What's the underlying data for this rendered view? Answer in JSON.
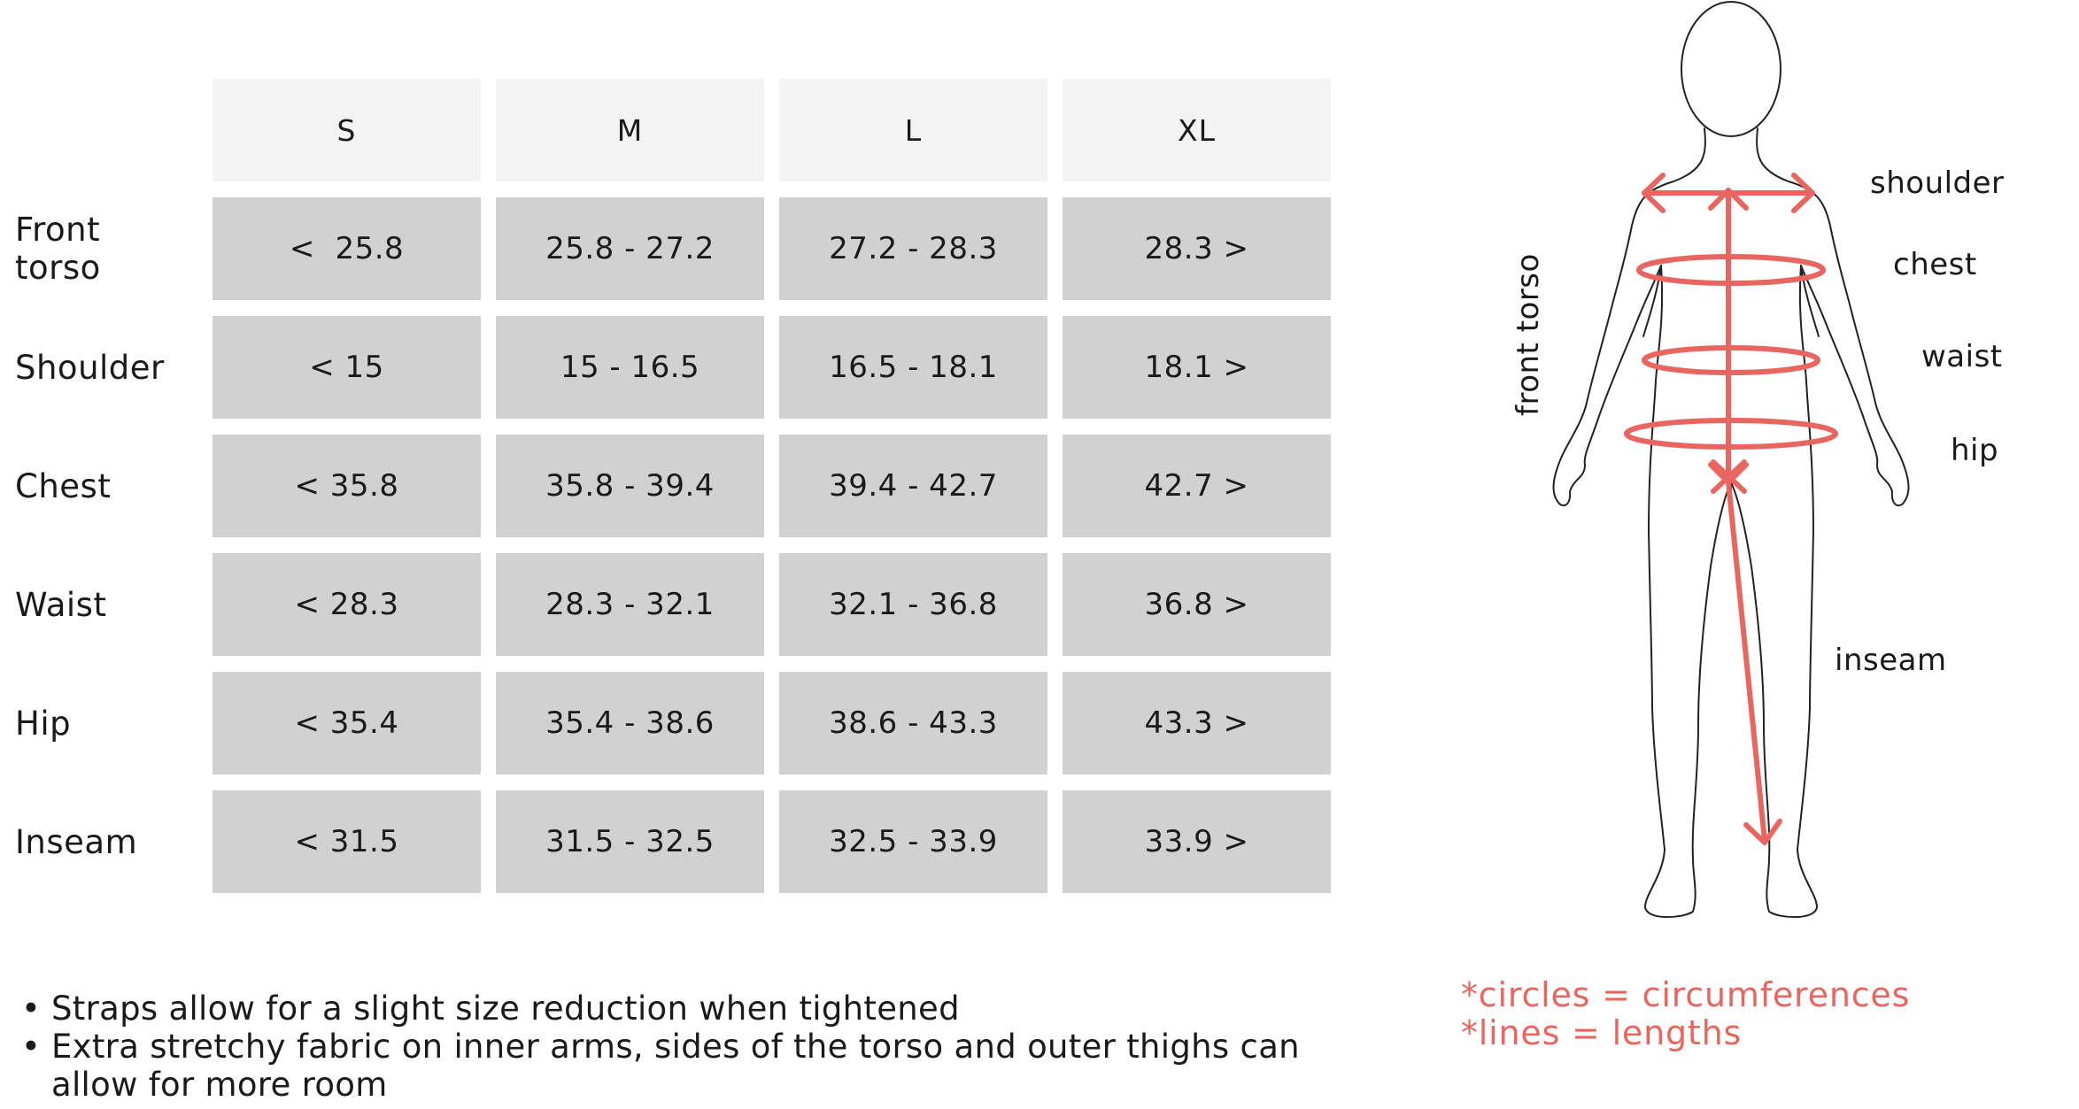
{
  "table": {
    "columns": [
      "S",
      "M",
      "L",
      "XL"
    ],
    "rows": [
      {
        "label": "Front\ntorso",
        "values": [
          "<  25.8",
          "25.8 - 27.2",
          "27.2 - 28.3",
          "28.3 >"
        ]
      },
      {
        "label": "Shoulder",
        "values": [
          "< 15",
          "15 - 16.5",
          "16.5 - 18.1",
          "18.1 >"
        ]
      },
      {
        "label": "Chest",
        "values": [
          "< 35.8",
          "35.8 - 39.4",
          "39.4 - 42.7",
          "42.7 >"
        ]
      },
      {
        "label": "Waist",
        "values": [
          "< 28.3",
          "28.3 - 32.1",
          "32.1 - 36.8",
          "36.8 >"
        ]
      },
      {
        "label": "Hip",
        "values": [
          "< 35.4",
          "35.4 - 38.6",
          "38.6 - 43.3",
          "43.3 >"
        ]
      },
      {
        "label": "Inseam",
        "values": [
          "< 31.5",
          "31.5 - 32.5",
          "32.5 - 33.9",
          "33.9 >"
        ]
      }
    ]
  },
  "notes": {
    "bullet_glyph": "•",
    "items": [
      "Straps allow for a slight size reduction when tightened",
      "Extra stretchy fabric on inner arms, sides of the torso and outer thighs can allow for more room"
    ]
  },
  "figure": {
    "labels": {
      "shoulder": "shoulder",
      "chest": "chest",
      "waist": "waist",
      "hip": "hip",
      "inseam": "inseam",
      "front_torso": "front torso"
    },
    "accent_color": "#e8665f",
    "outline_color": "#222222"
  },
  "legend": {
    "circles": "*circles = circumferences",
    "lines": "*lines = lengths"
  }
}
